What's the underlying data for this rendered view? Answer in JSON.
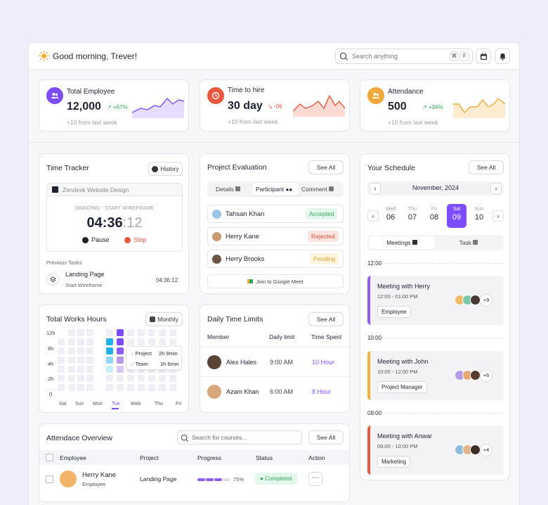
{
  "header": {
    "greeting": "Good morning, Trever!",
    "search_placeholder": "Search anything",
    "kbd1": "⌘",
    "kbd2": "F"
  },
  "stats": [
    {
      "title": "Total Employee",
      "value": "12,000",
      "change": "+67%",
      "foot": "+10 from last week",
      "color": "#7c4dff"
    },
    {
      "title": "Time to hire",
      "value": "30 day",
      "change": "-09",
      "foot": "+10 from last week",
      "color": "#e9573f"
    },
    {
      "title": "Attendance",
      "value": "500",
      "change": "+34%",
      "foot": "+10 from last week",
      "color": "#f0a93a"
    }
  ],
  "tracker": {
    "title": "Time Tracker",
    "history": "History",
    "project": "Zendesk Website Design",
    "status": "ONGOING - START WIREFRAME",
    "time_main": "04:36",
    "time_sec": ":12",
    "pause": "Pause",
    "stop": "Stop",
    "prev_label": "Previous Tasks",
    "task_title": "Landing Page",
    "task_sub": "Start Wireframe",
    "task_time": "04:36:12"
  },
  "evaluation": {
    "title": "Project Evaluation",
    "see_all": "See All",
    "tabs": [
      "Details",
      "Participant",
      "Comment"
    ],
    "people": [
      {
        "name": "Tahsan Khan",
        "status": "Accepted"
      },
      {
        "name": "Herry Kane",
        "status": "Rejected"
      },
      {
        "name": "Herry Brooks",
        "status": "Pending"
      }
    ],
    "meet": "Join to Google Meet"
  },
  "schedule": {
    "title": "Your Schedule",
    "see_all": "See All",
    "month": "November, 2024",
    "days": [
      {
        "d": "Wed",
        "n": "06"
      },
      {
        "d": "Thu",
        "n": "07"
      },
      {
        "d": "Fri",
        "n": "08"
      },
      {
        "d": "Sat",
        "n": "09"
      },
      {
        "d": "Sun",
        "n": "10"
      }
    ],
    "tabs": [
      "Meetings",
      "Task"
    ],
    "times": [
      "12:00",
      "10:00",
      "09:00"
    ],
    "meetings": [
      {
        "title": "Meeting with Herry",
        "time": "12:00 - 01:00 PM",
        "tag": "Employee",
        "more": "+9"
      },
      {
        "title": "Meeting with John",
        "time": "10:00 - 12:00 PM",
        "tag": "Project Manager",
        "more": "+6"
      },
      {
        "title": "Meeting with Anwar",
        "time": "09:00 - 10:00 PM",
        "tag": "Marketing",
        "more": "+4"
      }
    ]
  },
  "hours": {
    "title": "Total Works Hours",
    "filter": "Monthly",
    "ylabels": [
      "12h",
      "8h",
      "4h",
      "2h",
      "0"
    ],
    "xlabels": [
      "Sat",
      "Sun",
      "Mon",
      "Tue",
      "Web",
      "Thu",
      "Fri"
    ],
    "tooltip": [
      {
        "label": "Project",
        "value": "2h 9min"
      },
      {
        "label": "Team",
        "value": "1h 6min"
      }
    ]
  },
  "limits": {
    "title": "Daily Time Limits",
    "see_all": "See All",
    "cols": [
      "Member",
      "Daily limit",
      "Time Spent"
    ],
    "rows": [
      {
        "name": "Alex Hales",
        "limit": "9:00 AM",
        "spent": "10 Hour"
      },
      {
        "name": "Azam Khan",
        "limit": "6:00 AM",
        "spent": "8 Hour"
      }
    ]
  },
  "attendance": {
    "title": "Attendace Overview",
    "search_placeholder": "Search for courses...",
    "see_all": "See All",
    "cols": [
      "Employee",
      "Project",
      "Progress",
      "Status",
      "Action"
    ],
    "row": {
      "name": "Herry Kane",
      "role": "Employee",
      "project": "Landing Page",
      "progress": "75%",
      "status": "Completed"
    }
  }
}
